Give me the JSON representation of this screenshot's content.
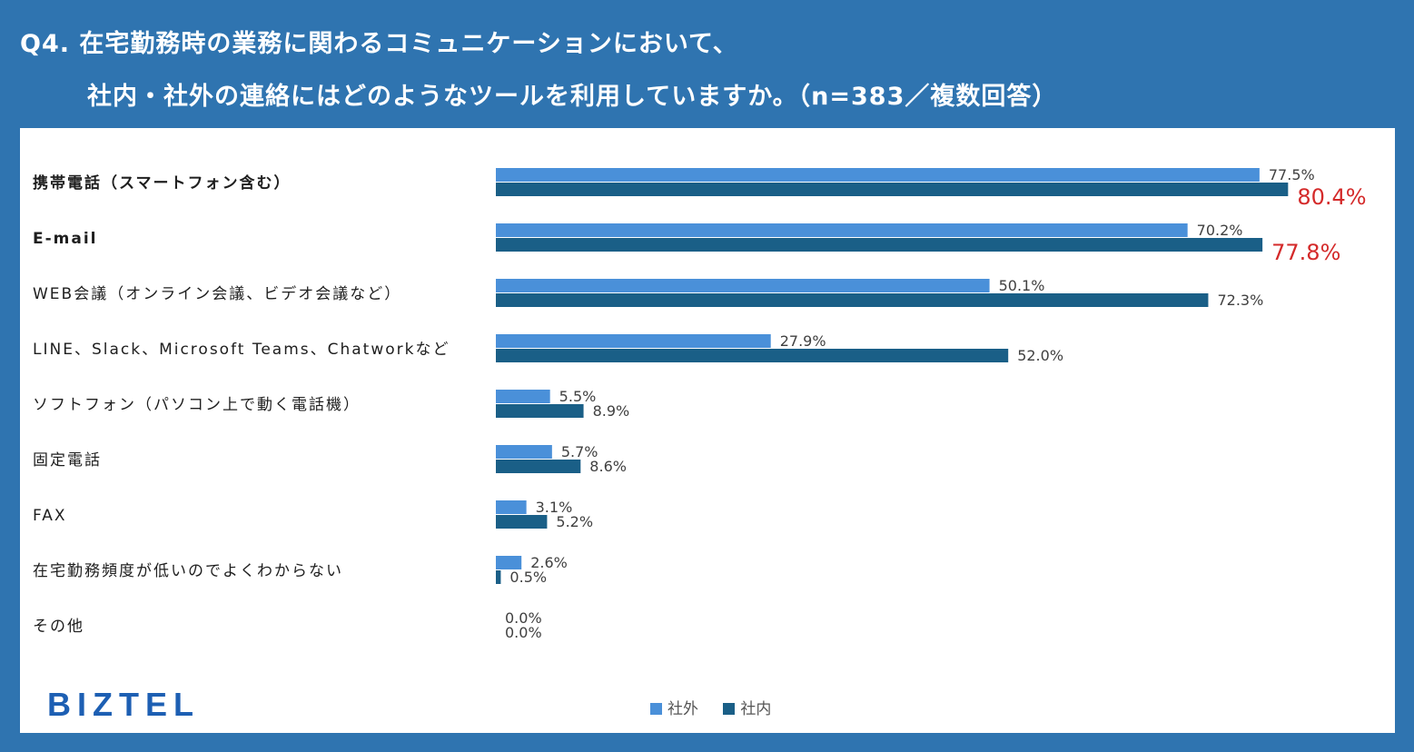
{
  "title": {
    "line1": "Q4. 在宅勤務時の業務に関わるコミュニケーションにおいて、",
    "line2": "社内・社外の連絡にはどのようなツールを利用していますか。（n=383／複数回答）"
  },
  "logo": "BIZTEL",
  "colors": {
    "background": "#2f74b0",
    "series_outside": "#4a90d9",
    "series_inside": "#1a5f87",
    "highlight": "#d42a2a"
  },
  "chart_data": {
    "type": "bar",
    "orientation": "horizontal",
    "categories": [
      "携帯電話（スマートフォン含む）",
      "E-mail",
      "WEB会議（オンライン会議、ビデオ会議など）",
      "LINE、Slack、Microsoft Teams、Chatworkなど",
      "ソフトフォン（パソコン上で動く電話機）",
      "固定電話",
      "FAX",
      "在宅勤務頻度が低いのでよくわからない",
      "その他"
    ],
    "bold_categories": [
      0,
      1
    ],
    "series": [
      {
        "name": "社外",
        "values": [
          77.5,
          70.2,
          50.1,
          27.9,
          5.5,
          5.7,
          3.1,
          2.6,
          0.0
        ],
        "labels": [
          "77.5%",
          "70.2%",
          "50.1%",
          "27.9%",
          "5.5%",
          "5.7%",
          "3.1%",
          "2.6%",
          "0.0%"
        ]
      },
      {
        "name": "社内",
        "values": [
          80.4,
          77.8,
          72.3,
          52.0,
          8.9,
          8.6,
          5.2,
          0.5,
          0.0
        ],
        "labels": [
          "80.4%",
          "77.8%",
          "72.3%",
          "52.0%",
          "8.9%",
          "8.6%",
          "5.2%",
          "0.5%",
          "0.0%"
        ]
      }
    ],
    "highlighted_labels": [
      {
        "series": 1,
        "index": 0
      },
      {
        "series": 1,
        "index": 1
      }
    ],
    "xlim": [
      0,
      100
    ],
    "unit": "%",
    "legend_position": "bottom-center"
  }
}
